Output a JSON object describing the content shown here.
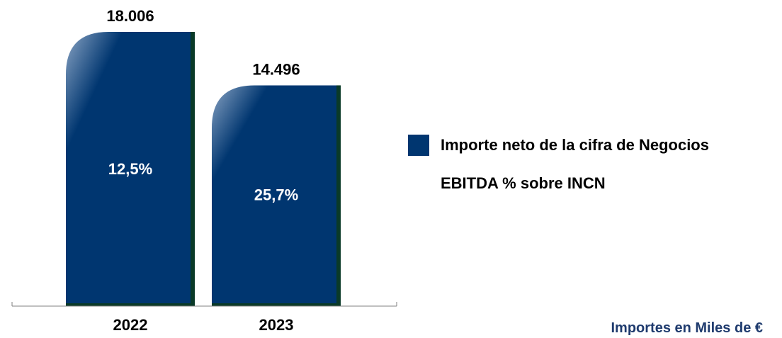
{
  "chart_data": {
    "type": "bar",
    "categories": [
      "2022",
      "2023"
    ],
    "series": [
      {
        "name": "Importe neto de la cifra de Negocios",
        "values": [
          18006,
          14496
        ],
        "value_labels": [
          "18.006",
          "14.496"
        ]
      },
      {
        "name": "EBITDA % sobre INCN",
        "values": [
          12.5,
          25.7
        ],
        "value_labels": [
          "12,5%",
          "25,7%"
        ]
      }
    ],
    "ylim": [
      0,
      18006
    ],
    "grid": false,
    "legend_position": "right"
  },
  "legend": {
    "items": [
      {
        "label": "Importe neto de la cifra de Negocios",
        "color": "#003670"
      },
      {
        "label": "EBITDA % sobre INCN"
      }
    ]
  },
  "units_note": "Importes en Miles de €",
  "colors": {
    "bar": "#003670",
    "bar_highlight": "#8aa4c4",
    "bar_shadow": "#0a3a28",
    "units_note": "#1f3b6e",
    "axis": "#808080"
  }
}
